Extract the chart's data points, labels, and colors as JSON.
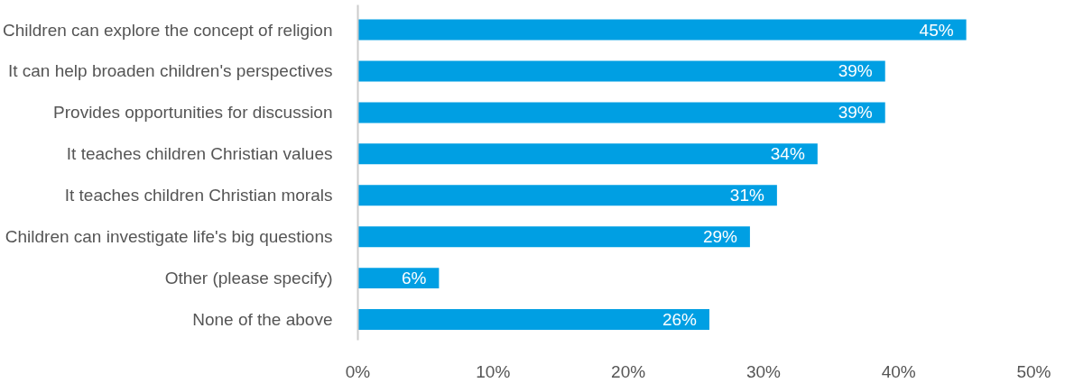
{
  "chart_data": {
    "type": "bar",
    "orientation": "horizontal",
    "categories": [
      "Children can explore the concept of religion",
      "It can help broaden children's perspectives",
      "Provides opportunities for discussion",
      "It teaches children Christian values",
      "It teaches children Christian morals",
      "Children can investigate life's big questions",
      "Other (please specify)",
      "None of the above"
    ],
    "values": [
      45,
      39,
      39,
      34,
      31,
      29,
      6,
      26
    ],
    "value_labels": [
      "45%",
      "39%",
      "39%",
      "34%",
      "31%",
      "29%",
      "6%",
      "26%"
    ],
    "color": "#009fe3",
    "xlim": [
      0,
      50
    ],
    "xticks": [
      {
        "value": 0,
        "label": "0%"
      },
      {
        "value": 10,
        "label": "10%"
      },
      {
        "value": 20,
        "label": "20%"
      },
      {
        "value": 30,
        "label": "30%"
      },
      {
        "value": 40,
        "label": "40%"
      },
      {
        "value": 50,
        "label": "50%"
      }
    ],
    "grid": false
  }
}
